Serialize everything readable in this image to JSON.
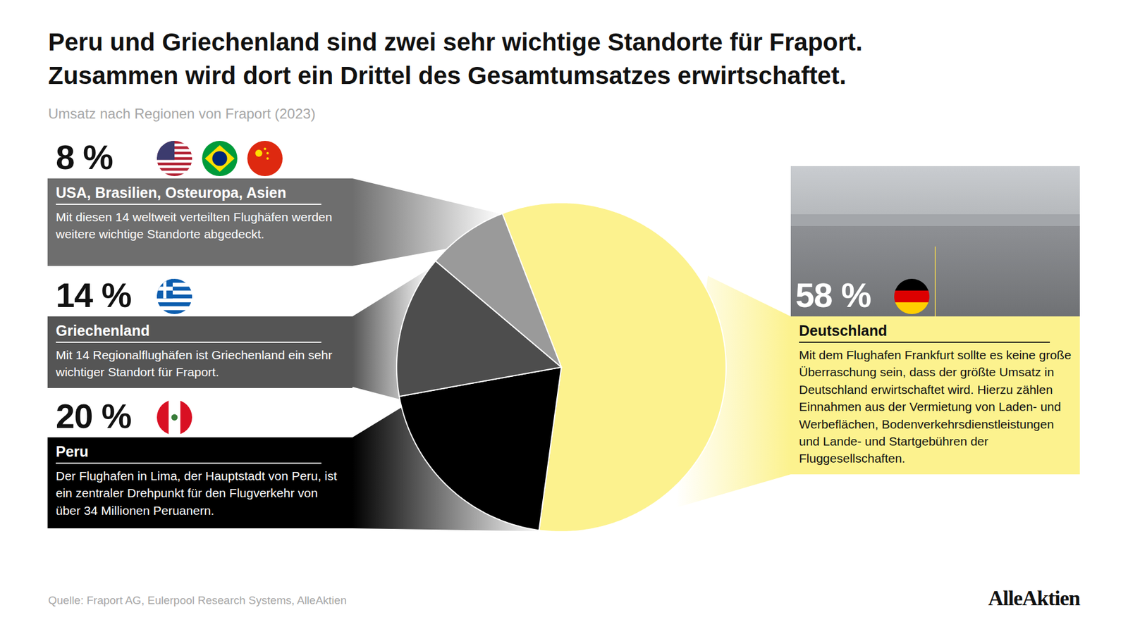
{
  "chart_data": {
    "type": "pie",
    "title": "Peru und Griechenland sind zwei sehr wichtige Standorte für Fraport.\nZusammen wird dort ein Drittel des Gesamtumsatzes erwirtschaftet.",
    "subtitle": "Umsatz nach Regionen von Fraport (2023)",
    "categories": [
      "Deutschland",
      "Peru",
      "Griechenland",
      "USA, Brasilien, Osteuropa, Asien"
    ],
    "values": [
      58,
      20,
      14,
      8
    ],
    "value_labels": [
      "58 %",
      "20 %",
      "14 %",
      "8 %"
    ],
    "data_labels": true,
    "colors": [
      "#fcf28e",
      "#000000",
      "#4d4d4d",
      "#9a9a9a"
    ],
    "annotations": [
      "Mit dem Flughafen Frankfurt sollte es keine große Überraschung sein, dass der größte Umsatz in Deutschland erwirtschaftet wird. Hierzu zählen Einnahmen aus der Vermietung von Laden- und Werbeflächen, Bodenverkehrsdienstleistungen und Lande- und Startgebühren der Fluggesellschaften.",
      "Der Flughafen in Lima, der Hauptstadt von Peru, ist ein zentraler Drehpunkt für den Flugverkehr von über 34 Millionen Peruanern.",
      "Mit 14 Regionalflughäfen ist Griechenland ein sehr wichtiger Standort für Fraport.",
      "Mit diesen 14 weltweit verteilten Flughäfen werden weitere wichtige Standorte abgedeckt."
    ],
    "source": "Quelle: Fraport AG, Eulerpool Research Systems, AlleAktien",
    "brand": "AlleAktien"
  }
}
